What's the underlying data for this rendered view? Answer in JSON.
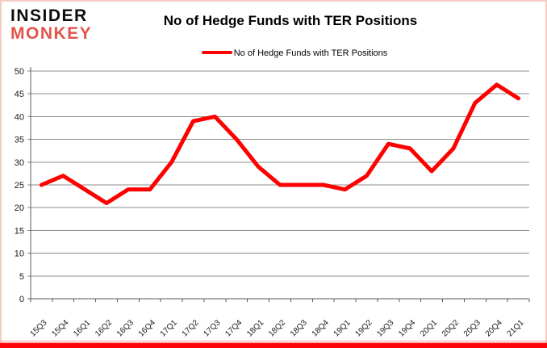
{
  "logo": {
    "line1": "INSIDER",
    "line2": "MONKEY",
    "line1_color": "#0d0d0d",
    "line2_color": "#e2544b"
  },
  "header": {
    "title": "No of Hedge Funds with TER Positions"
  },
  "legend": {
    "label": "No of Hedge Funds with TER Positions",
    "color": "#ff0000",
    "position": "top"
  },
  "frame": {
    "border_color": "#f5cbc6",
    "bottom_bar_color": "#fb050a"
  },
  "chart_data": {
    "type": "line",
    "title": "No of Hedge Funds with TER Positions",
    "categories": [
      "15Q3",
      "15Q4",
      "16Q1",
      "16Q2",
      "16Q3",
      "16Q4",
      "17Q1",
      "17Q2",
      "17Q3",
      "17Q4",
      "18Q1",
      "18Q2",
      "18Q3",
      "18Q4",
      "19Q1",
      "19Q2",
      "19Q3",
      "19Q4",
      "20Q1",
      "20Q2",
      "20Q3",
      "20Q4",
      "21Q1"
    ],
    "series": [
      {
        "name": "No of Hedge Funds with TER Positions",
        "values": [
          25,
          27,
          24,
          21,
          24,
          24,
          30,
          39,
          40,
          35,
          29,
          25,
          25,
          25,
          24,
          27,
          34,
          33,
          28,
          33,
          43,
          47,
          44
        ]
      }
    ],
    "xlabel": "",
    "ylabel": "",
    "ylim": [
      0,
      50
    ],
    "ytick_step": 5,
    "grid": "horizontal",
    "legend_position": "top",
    "line_color": "#ff0000",
    "grid_color": "#8c8c8c",
    "axis_color": "#595959",
    "tick_label_color": "#1a1a1a",
    "background": "#ffffff"
  }
}
